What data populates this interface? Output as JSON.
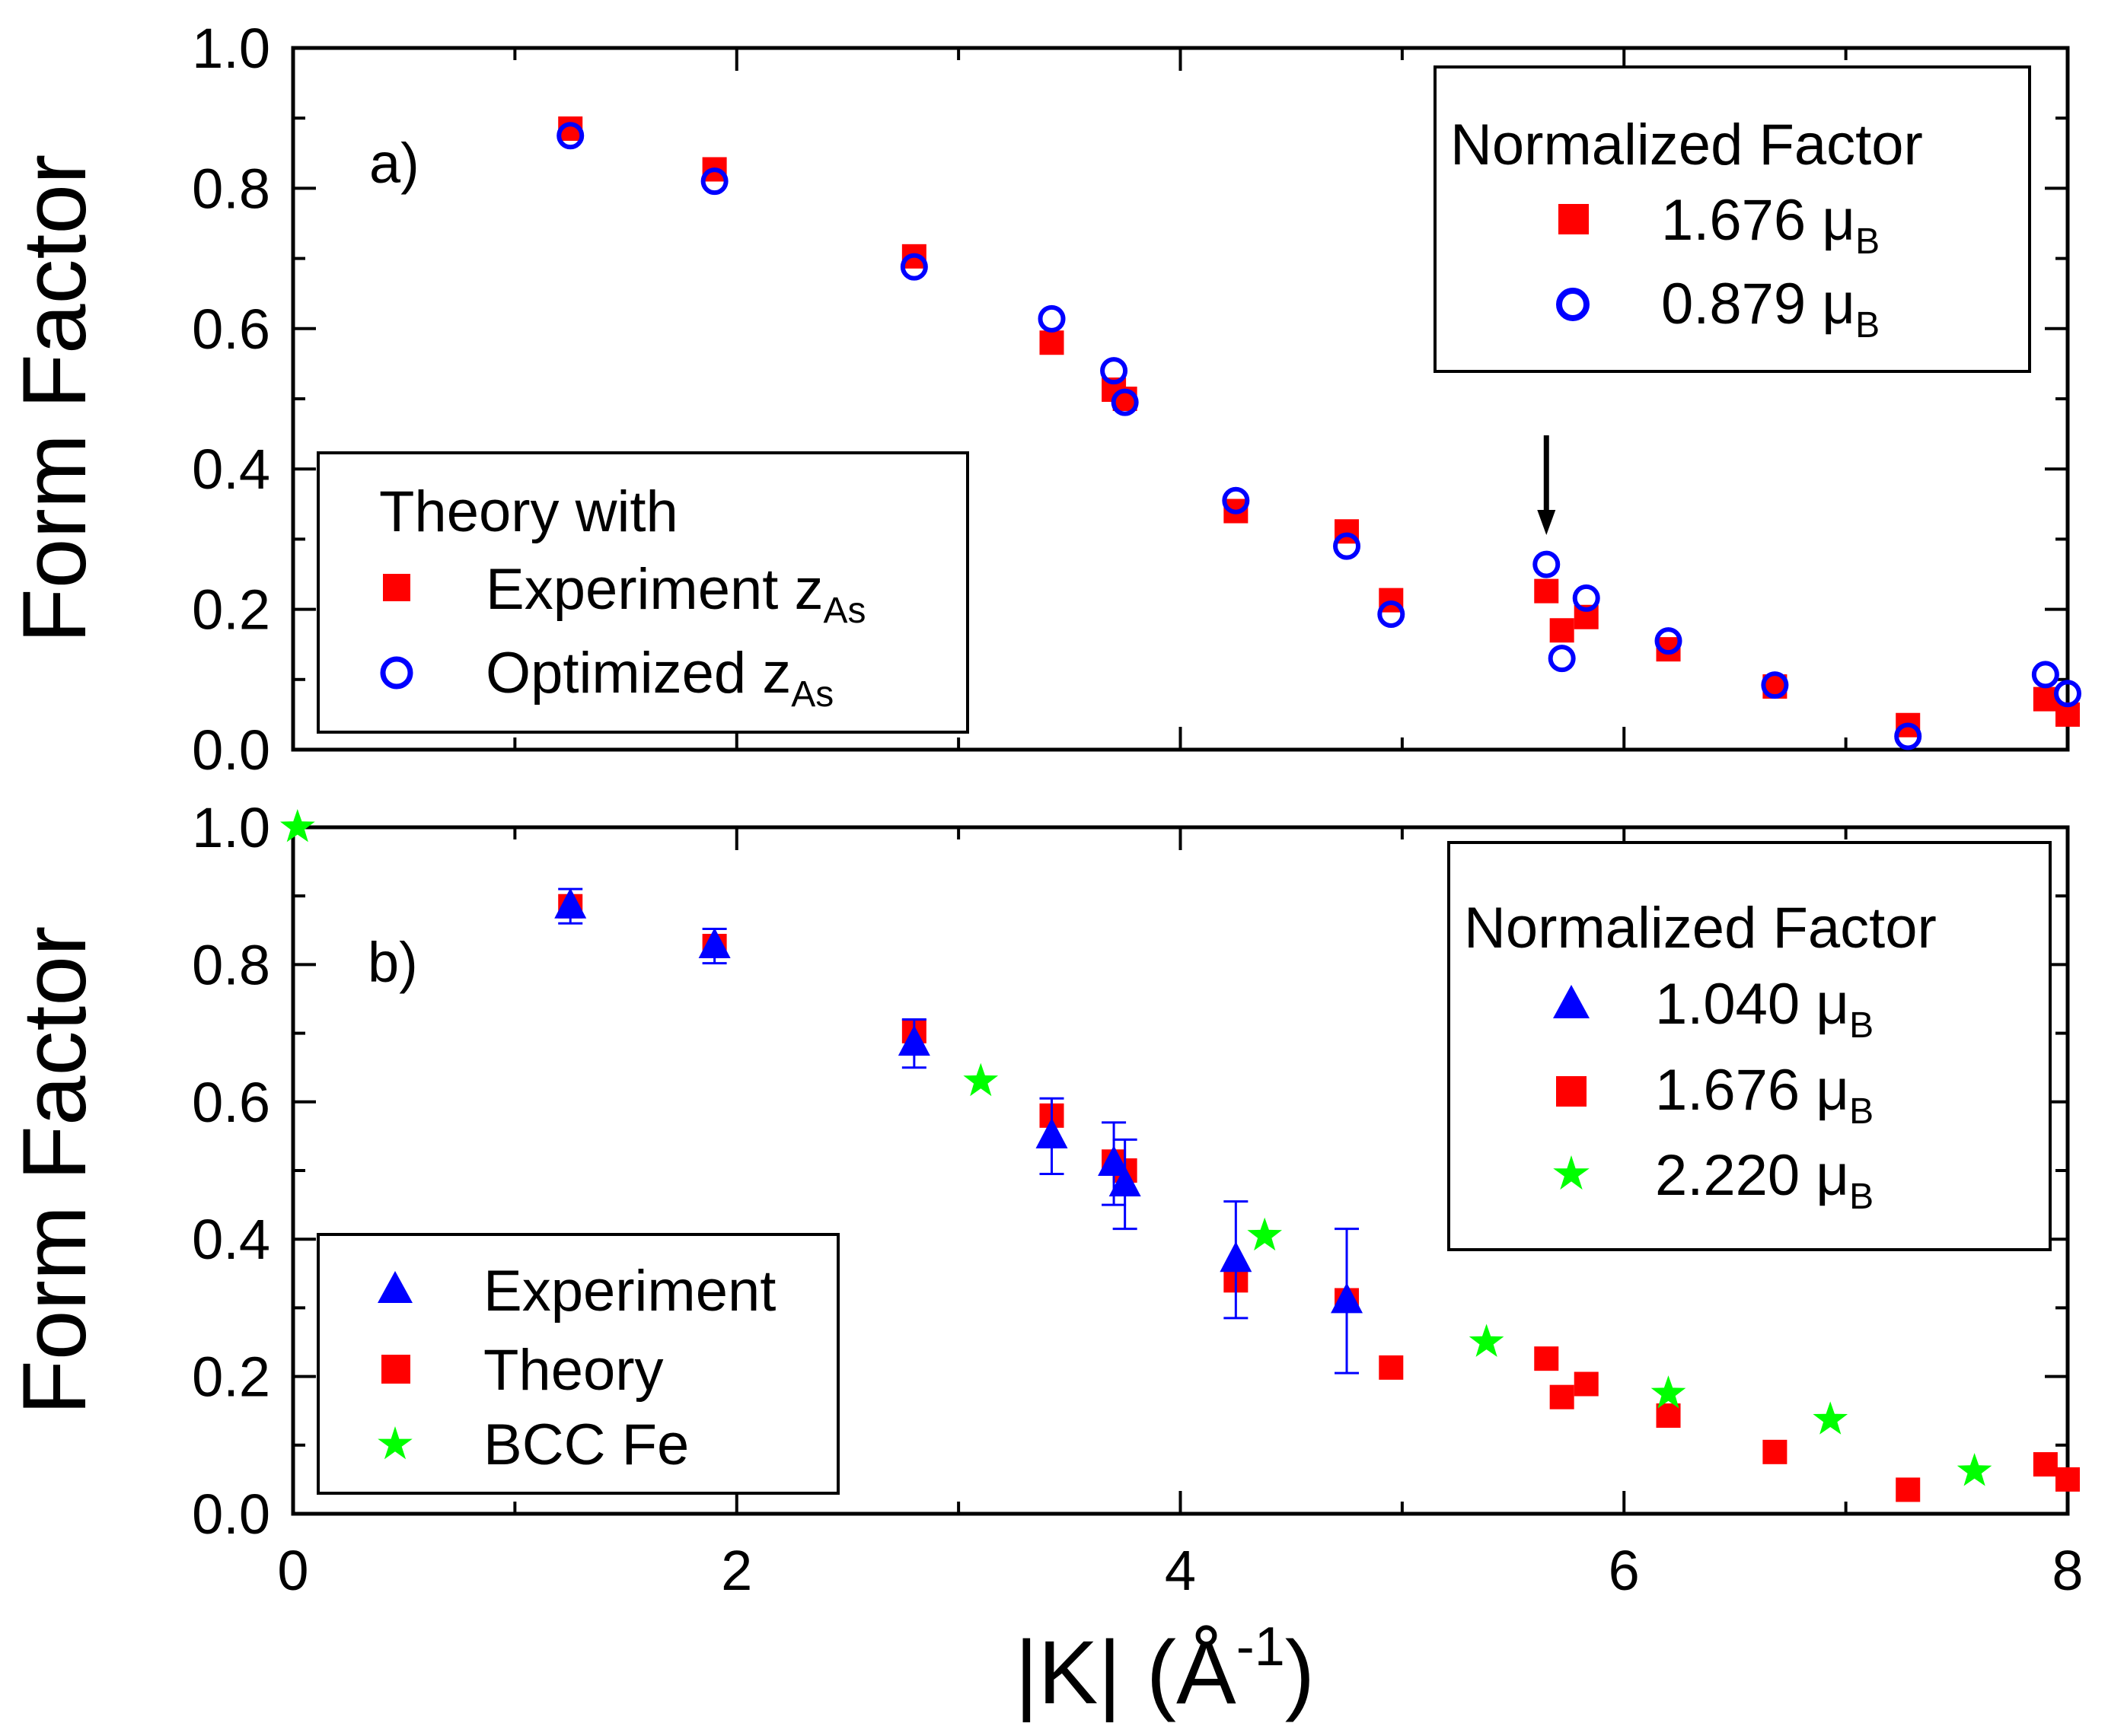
{
  "chart_data": [
    {
      "type": "scatter",
      "panel_label": "a)",
      "xlim": [
        0,
        8
      ],
      "ylim": [
        0,
        1.0
      ],
      "ylabel": "Form Factor",
      "yticks": [
        "0.0",
        "0.2",
        "0.4",
        "0.6",
        "0.8",
        "1.0"
      ],
      "annotation": "arrow pointing down at K = 5.65",
      "arrow_x": 5.65,
      "series": [
        {
          "name": "Experiment z",
          "subscript": "As",
          "marker": "square",
          "color": "#ff0000",
          "x": [
            1.25,
            1.9,
            2.8,
            3.42,
            3.7,
            3.75,
            4.25,
            4.75,
            4.95,
            5.65,
            5.72,
            5.83,
            6.2,
            6.68,
            7.28,
            7.9,
            8.0
          ],
          "y": [
            0.885,
            0.827,
            0.703,
            0.58,
            0.513,
            0.5,
            0.34,
            0.311,
            0.213,
            0.226,
            0.17,
            0.189,
            0.143,
            0.09,
            0.035,
            0.072,
            0.05
          ]
        },
        {
          "name": "Optimized z",
          "subscript": "As",
          "marker": "circle",
          "color": "#0000ff",
          "x": [
            1.25,
            1.9,
            2.8,
            3.42,
            3.7,
            3.75,
            4.25,
            4.75,
            4.95,
            5.65,
            5.72,
            5.83,
            6.2,
            6.68,
            7.28,
            7.9,
            8.0
          ],
          "y": [
            0.875,
            0.81,
            0.688,
            0.614,
            0.54,
            0.495,
            0.355,
            0.29,
            0.193,
            0.264,
            0.13,
            0.216,
            0.155,
            0.092,
            0.019,
            0.107,
            0.08
          ]
        }
      ],
      "legend_theory": {
        "title": "Theory with",
        "position": "bottom-left"
      },
      "legend_norm": {
        "title": "Normalized Factor",
        "position": "top-right",
        "entries": [
          {
            "marker": "square",
            "color": "#ff0000",
            "value": "1.676 μ",
            "subscript": "B"
          },
          {
            "marker": "circle",
            "color": "#0000ff",
            "value": "0.879 μ",
            "subscript": "B"
          }
        ]
      }
    },
    {
      "type": "scatter",
      "panel_label": "b)",
      "xlim": [
        0,
        8
      ],
      "ylim": [
        0,
        1.0
      ],
      "xlabel": "|K| (Å",
      "xlabel_sup": "-1",
      "xlabel_end": ")",
      "ylabel": "Form Factor",
      "xticks": [
        "0",
        "2",
        "4",
        "6",
        "8"
      ],
      "yticks": [
        "0.0",
        "0.2",
        "0.4",
        "0.6",
        "0.8",
        "1.0"
      ],
      "series": [
        {
          "name": "Theory",
          "marker": "square",
          "color": "#ff0000",
          "x": [
            1.25,
            1.9,
            2.8,
            3.42,
            3.7,
            3.75,
            4.25,
            4.75,
            4.95,
            5.65,
            5.72,
            5.83,
            6.2,
            6.68,
            7.28,
            7.9,
            8.0
          ],
          "y": [
            0.885,
            0.827,
            0.703,
            0.58,
            0.513,
            0.5,
            0.34,
            0.311,
            0.213,
            0.226,
            0.17,
            0.189,
            0.143,
            0.09,
            0.035,
            0.072,
            0.05
          ]
        },
        {
          "name": "Experiment",
          "marker": "triangle",
          "color": "#0000ff",
          "x": [
            1.25,
            1.9,
            2.8,
            3.42,
            3.7,
            3.75,
            4.25,
            4.75
          ],
          "y": [
            0.885,
            0.827,
            0.685,
            0.55,
            0.51,
            0.48,
            0.37,
            0.31
          ],
          "err": [
            0.025,
            0.025,
            0.035,
            0.055,
            0.06,
            0.065,
            0.085,
            0.105
          ]
        },
        {
          "name": "BCC Fe",
          "marker": "star",
          "color": "#00ff00",
          "x": [
            0.02,
            3.1,
            4.38,
            5.38,
            6.2,
            6.93,
            7.58
          ],
          "y": [
            1.0,
            0.63,
            0.405,
            0.25,
            0.175,
            0.137,
            0.062
          ]
        }
      ],
      "legend_series": {
        "position": "bottom-left",
        "entries": [
          {
            "marker": "triangle",
            "color": "#0000ff",
            "label": "Experiment"
          },
          {
            "marker": "square",
            "color": "#ff0000",
            "label": "Theory"
          },
          {
            "marker": "star",
            "color": "#00ff00",
            "label": "BCC Fe"
          }
        ]
      },
      "legend_norm": {
        "title": "Normalized Factor",
        "position": "top-right",
        "entries": [
          {
            "marker": "triangle",
            "color": "#0000ff",
            "value": "1.040 μ",
            "subscript": "B"
          },
          {
            "marker": "square",
            "color": "#ff0000",
            "value": "1.676 μ",
            "subscript": "B"
          },
          {
            "marker": "star",
            "color": "#00ff00",
            "value": "2.220 μ",
            "subscript": "B"
          }
        ]
      }
    }
  ]
}
